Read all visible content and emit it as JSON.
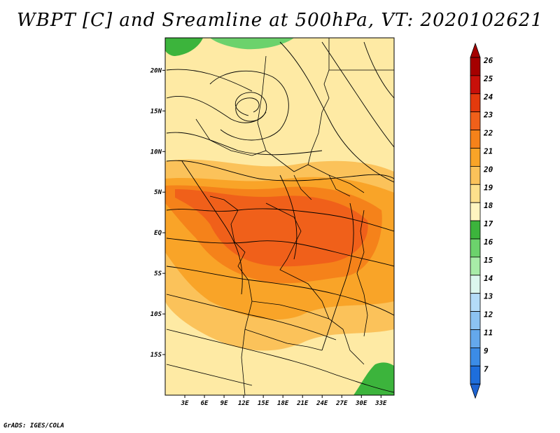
{
  "title": "WBPT [C] and Sreamline at 500hPa, VT: 2020102621",
  "credit": "GrADS: IGES/COLA",
  "map": {
    "lon_range": [
      0,
      35
    ],
    "lat_range": [
      -20,
      24
    ],
    "x_ticks": [
      {
        "label": "3E",
        "lon": 3
      },
      {
        "label": "6E",
        "lon": 6
      },
      {
        "label": "9E",
        "lon": 9
      },
      {
        "label": "12E",
        "lon": 12
      },
      {
        "label": "15E",
        "lon": 15
      },
      {
        "label": "18E",
        "lon": 18
      },
      {
        "label": "21E",
        "lon": 21
      },
      {
        "label": "24E",
        "lon": 24
      },
      {
        "label": "27E",
        "lon": 27
      },
      {
        "label": "30E",
        "lon": 30
      },
      {
        "label": "33E",
        "lon": 33
      }
    ],
    "y_ticks": [
      {
        "label": "20N",
        "lat": 20
      },
      {
        "label": "15N",
        "lat": 15
      },
      {
        "label": "10N",
        "lat": 10
      },
      {
        "label": "5N",
        "lat": 5
      },
      {
        "label": "EQ",
        "lat": 0
      },
      {
        "label": "5S",
        "lat": -5
      },
      {
        "label": "10S",
        "lat": -10
      },
      {
        "label": "15S",
        "lat": -15
      }
    ]
  },
  "colorbar": {
    "levels": [
      {
        "label": "26",
        "color": "#a50000"
      },
      {
        "label": "25",
        "color": "#c8100a"
      },
      {
        "label": "24",
        "color": "#e43a0d"
      },
      {
        "label": "23",
        "color": "#f0601a"
      },
      {
        "label": "22",
        "color": "#f5821a"
      },
      {
        "label": "21",
        "color": "#f9a428"
      },
      {
        "label": "20",
        "color": "#fbc25a"
      },
      {
        "label": "19",
        "color": "#fde08c"
      },
      {
        "label": "18",
        "color": "#fff5c0"
      },
      {
        "label": "17",
        "color": "#3cb43c"
      },
      {
        "label": "16",
        "color": "#6cd26c"
      },
      {
        "label": "15",
        "color": "#a8eca8"
      },
      {
        "label": "14",
        "color": "#dcf7ee"
      },
      {
        "label": "13",
        "color": "#b4dcf8"
      },
      {
        "label": "12",
        "color": "#8cc3f2"
      },
      {
        "label": "11",
        "color": "#64a8ec"
      },
      {
        "label": "9",
        "color": "#3c8ce6"
      },
      {
        "label": "7",
        "color": "#1e6edc"
      }
    ],
    "bottom_color": "#1e64d2"
  }
}
